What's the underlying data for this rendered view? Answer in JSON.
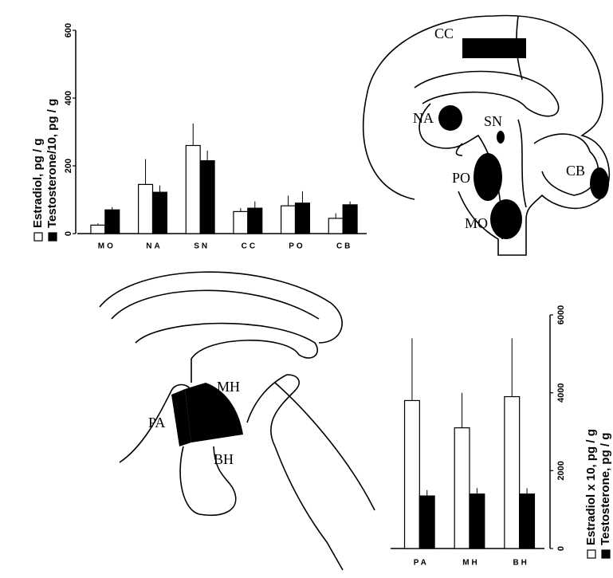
{
  "chart_data": [
    {
      "type": "bar",
      "categories": [
        "MO",
        "NA",
        "SN",
        "CC",
        "PO",
        "CB"
      ],
      "series": [
        {
          "name": "Estradiol, pg / g",
          "color": "#ffffff",
          "values": [
            25,
            145,
            260,
            65,
            82,
            45
          ],
          "errors": [
            5,
            75,
            65,
            10,
            30,
            15
          ]
        },
        {
          "name": "Testosterone/10, pg / g",
          "color": "#000000",
          "values": [
            70,
            122,
            215,
            75,
            90,
            85
          ],
          "errors": [
            8,
            20,
            30,
            20,
            35,
            10
          ]
        }
      ],
      "ylim": [
        0,
        600
      ],
      "yticks": [
        0,
        200,
        400,
        600
      ]
    },
    {
      "type": "bar",
      "categories": [
        "PA",
        "MH",
        "BH"
      ],
      "series": [
        {
          "name": "Estradiol x 10, pg / g",
          "color": "#ffffff",
          "values": [
            3800,
            3100,
            3900
          ],
          "errors": [
            1600,
            900,
            1500
          ]
        },
        {
          "name": "Testosterone, pg / g",
          "color": "#000000",
          "values": [
            1350,
            1400,
            1400
          ],
          "errors": [
            150,
            150,
            150
          ]
        }
      ],
      "ylim": [
        0,
        6000
      ],
      "yticks": [
        0,
        2000,
        4000,
        6000
      ]
    }
  ],
  "diagram_labels": {
    "sagittal": [
      "CC",
      "NA",
      "SN",
      "PO",
      "CB",
      "MO"
    ],
    "hypothalamus": [
      "MH",
      "PA",
      "BH"
    ]
  }
}
